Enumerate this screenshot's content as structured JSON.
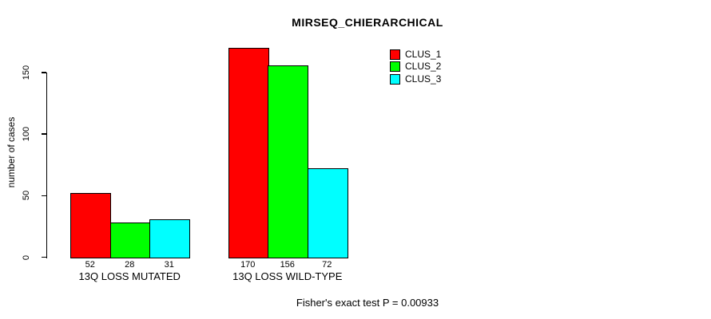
{
  "chart_data": {
    "type": "bar",
    "title": "MIRSEQ_CHIERARCHICAL",
    "ylabel": "number of cases",
    "xlabel": "",
    "footnote": "Fisher's exact test P = 0.00933",
    "categories": [
      "13Q LOSS MUTATED",
      "13Q LOSS WILD-TYPE"
    ],
    "series": [
      {
        "name": "CLUS_1",
        "color": "#FF0000",
        "values": [
          52,
          170
        ]
      },
      {
        "name": "CLUS_2",
        "color": "#00FF00",
        "values": [
          28,
          156
        ]
      },
      {
        "name": "CLUS_3",
        "color": "#00FFFF",
        "values": [
          31,
          72
        ]
      }
    ],
    "yticks": [
      0,
      50,
      100,
      150
    ],
    "ylim": [
      0,
      150
    ],
    "grid": false,
    "legend_position": "top-right",
    "bar_value_labels_shown": true
  },
  "colors": {
    "background": "#FFFFFF",
    "axis": "#000000",
    "text": "#000000"
  }
}
